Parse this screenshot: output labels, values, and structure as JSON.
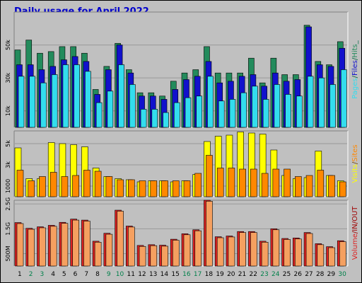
{
  "chart_data": {
    "type": "bar",
    "title": "Daily usage for April 2022",
    "categories": [
      "1",
      "2",
      "3",
      "4",
      "5",
      "6",
      "7",
      "8",
      "9",
      "10",
      "11",
      "12",
      "13",
      "14",
      "15",
      "16",
      "17",
      "18",
      "19",
      "20",
      "21",
      "22",
      "23",
      "24",
      "25",
      "26",
      "27",
      "28",
      "29",
      "30"
    ],
    "weekend_days": [
      "2",
      "3",
      "9",
      "10",
      "16",
      "17",
      "23",
      "24",
      "30"
    ],
    "panels": [
      {
        "id": "top",
        "ylim": [
          0,
          70000
        ],
        "yticks": [
          {
            "value": 10000,
            "label": "10k"
          },
          {
            "value": 30000,
            "label": "30k"
          },
          {
            "value": 50000,
            "label": "50k"
          }
        ],
        "axis_label": [
          "Pages",
          "/",
          "Files",
          "/",
          "Hits",
          "_"
        ],
        "series": [
          {
            "name": "Hits",
            "color": "#238b5c",
            "values": [
              47000,
              53000,
              45000,
              46000,
              49000,
              49000,
              45000,
              23000,
              37000,
              51000,
              35000,
              21000,
              21000,
              19000,
              28000,
              33000,
              35000,
              49000,
              33000,
              33000,
              33000,
              42000,
              27000,
              42000,
              32000,
              32000,
              62000,
              40000,
              38000,
              52000
            ]
          },
          {
            "name": "Files",
            "color": "#1111cc",
            "values": [
              38000,
              38000,
              35000,
              37000,
              41000,
              43000,
              40000,
              20000,
              35000,
              50000,
              33000,
              19000,
              19000,
              17000,
              23000,
              29000,
              31000,
              40000,
              27000,
              28000,
              31000,
              32000,
              25000,
              33000,
              28000,
              29000,
              61000,
              38000,
              37000,
              48000
            ]
          },
          {
            "name": "Pages",
            "color": "#33ddee",
            "values": [
              31000,
              31000,
              27000,
              32000,
              38000,
              38000,
              34000,
              15000,
              22000,
              38000,
              26000,
              11000,
              11000,
              9000,
              15000,
              18000,
              19000,
              31000,
              16000,
              17000,
              21000,
              25000,
              17000,
              26000,
              20000,
              19000,
              31000,
              30000,
              26000,
              35000
            ]
          }
        ]
      },
      {
        "id": "middle",
        "ylim": [
          0,
          6200
        ],
        "yticks": [
          {
            "value": 1000,
            "label": "1000"
          },
          {
            "value": 3000,
            "label": "3k"
          },
          {
            "value": 5000,
            "label": "5k"
          }
        ],
        "axis_label": [
          "Visits",
          "/",
          "Sites"
        ],
        "series": [
          {
            "name": "Visits",
            "color": "#ffff00",
            "values": [
              4600,
              1700,
              1700,
              5100,
              5000,
              4900,
              4700,
              2700,
              1900,
              1700,
              1600,
              1400,
              1500,
              1500,
              1400,
              1500,
              2100,
              5200,
              5700,
              5800,
              6100,
              6000,
              5900,
              4400,
              2000,
              1700,
              1800,
              4300,
              2000,
              1500
            ]
          },
          {
            "name": "Sites",
            "color": "#ff8800",
            "values": [
              2500,
              1500,
              1900,
              2300,
              1900,
              2000,
              2500,
              2400,
              1900,
              1600,
              1600,
              1500,
              1500,
              1500,
              1500,
              1500,
              2200,
              3900,
              2700,
              2700,
              2600,
              2600,
              2200,
              2600,
              2600,
              1900,
              2000,
              2500,
              2000,
              1400
            ]
          }
        ]
      },
      {
        "id": "bottom",
        "ylim": [
          0,
          2650
        ],
        "yticks": [
          {
            "value": 500,
            "label": "500M"
          },
          {
            "value": 1500,
            "label": "1.5G"
          },
          {
            "value": 2500,
            "label": "2.5G"
          }
        ],
        "axis_label": [
          "Volume",
          "/",
          "IN",
          "/",
          "OUT"
        ],
        "series": [
          {
            "name": "Volume",
            "color": "#dd2222",
            "values": [
              1750,
              1520,
              1580,
              1640,
              1760,
              1890,
              1850,
              1000,
              1320,
              2250,
              1610,
              830,
              860,
              840,
              1080,
              1300,
              1460,
              2650,
              1180,
              1210,
              1390,
              1390,
              1000,
              1500,
              1110,
              1130,
              1350,
              900,
              780,
              1020
            ]
          },
          {
            "name": "Volume (light)",
            "color": "#f5a060",
            "values": [
              1710,
              1480,
              1540,
              1600,
              1720,
              1850,
              1810,
              960,
              1280,
              2210,
              1570,
              790,
              820,
              800,
              1040,
              1260,
              1420,
              2610,
              1140,
              1170,
              1350,
              1350,
              960,
              1460,
              1070,
              1090,
              1310,
              860,
              740,
              980
            ]
          }
        ]
      }
    ]
  }
}
